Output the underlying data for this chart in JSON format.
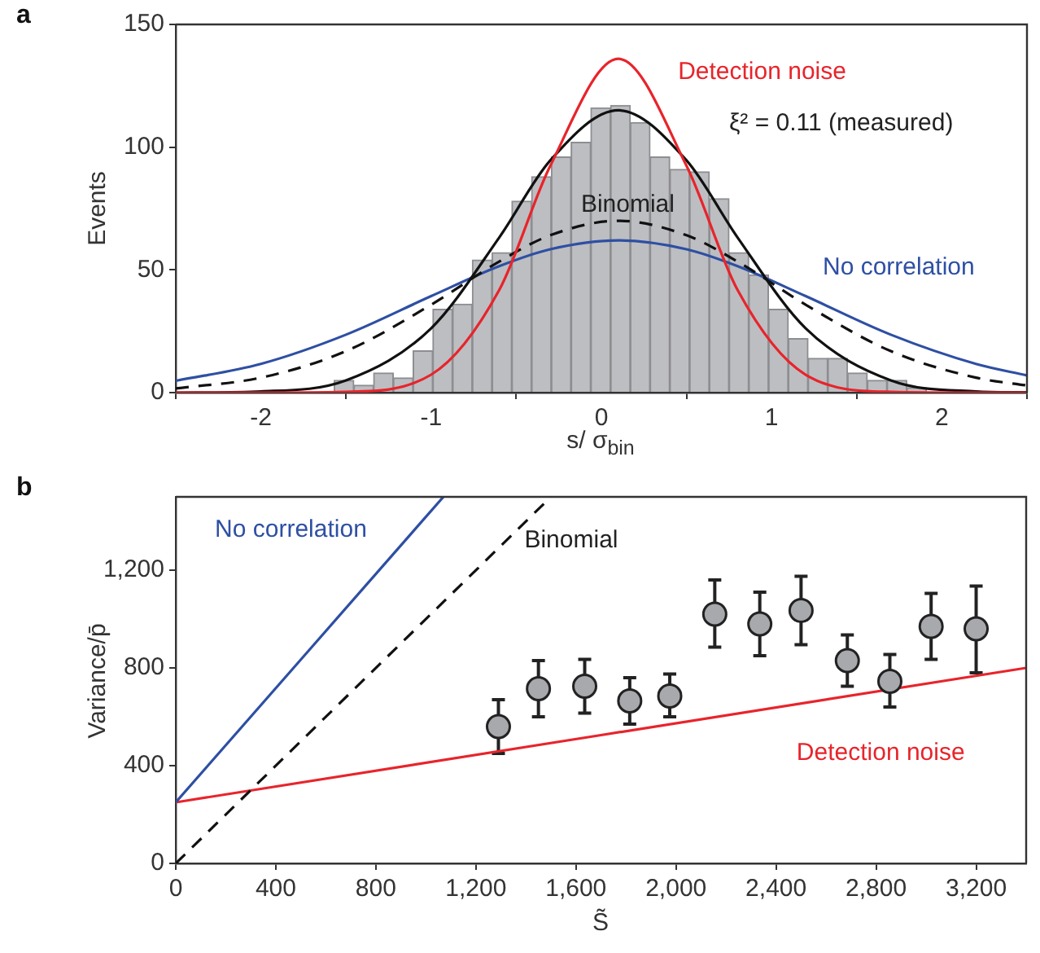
{
  "chart_data": [
    {
      "type": "histogram",
      "title": "a",
      "xlabel": "s/ σ$_{bin}$",
      "ylabel": "Events",
      "xlim": [
        -2.5,
        2.5
      ],
      "xticks": [
        -2,
        -1,
        0,
        1,
        2
      ],
      "ylim": [
        0,
        150
      ],
      "yticks": [
        0,
        50,
        100,
        150
      ],
      "grid": false,
      "legend": false,
      "series": [
        {
          "color": "#bdbec2",
          "bins": [
            -1.57,
            -1.454,
            -1.338,
            -1.222,
            -1.106,
            -0.99,
            -0.874,
            -0.758,
            -0.642,
            -0.526,
            -0.41,
            -0.294,
            -0.178,
            -0.062,
            0.054,
            0.17,
            0.286,
            0.402,
            0.518,
            0.634,
            0.75,
            0.866,
            0.982,
            1.098,
            1.214,
            1.33,
            1.446,
            1.562,
            1.678,
            1.794,
            1.91
          ],
          "values": [
            5,
            3,
            8,
            6,
            17,
            34,
            36,
            54,
            57,
            78,
            88,
            96,
            102,
            116,
            117,
            110,
            96,
            91,
            90,
            79,
            57,
            48,
            34,
            22,
            14,
            14,
            8,
            5,
            5,
            2
          ]
        },
        {
          "type": "line",
          "name": "Detection noise",
          "color": "#e8242b",
          "x": [
            -2.5,
            -2,
            -1.5,
            -1,
            -0.6,
            -0.3,
            0.1,
            0.5,
            0.8,
            1.2,
            1.7,
            2.2,
            2.5
          ],
          "values": [
            0,
            0,
            0.3,
            7.3,
            41.8,
            92.4,
            136,
            92.4,
            41.8,
            7.3,
            0.3,
            0,
            0
          ]
        },
        {
          "type": "line",
          "name": "ξ² = 0.11 (measured)",
          "color": "#111111",
          "x": [
            -2.5,
            -2,
            -1.5,
            -1,
            -0.6,
            -0.3,
            0.1,
            0.5,
            0.8,
            1.2,
            1.7,
            2.2,
            2.5
          ],
          "values": [
            0,
            0.5,
            5,
            26.2,
            63.2,
            94.6,
            115,
            94.6,
            63.2,
            26.2,
            5,
            0.5,
            0.1
          ]
        },
        {
          "type": "line",
          "name": "Binomial",
          "color": "#111111",
          "line_style": "dashed",
          "x": [
            -2.5,
            -2,
            -1.5,
            -1,
            -0.6,
            -0.3,
            0.1,
            0.5,
            0.8,
            1.2,
            1.7,
            2.2,
            2.5
          ],
          "values": [
            1.7,
            6.1,
            16.9,
            35.8,
            53.4,
            64.1,
            70,
            64.1,
            53.4,
            35.8,
            16.9,
            6.1,
            2.9
          ]
        },
        {
          "type": "line",
          "name": "No correlation",
          "color": "#2e4fa3",
          "x": [
            -2.5,
            -2,
            -1.5,
            -1,
            -0.6,
            -0.3,
            0.1,
            0.5,
            0.8,
            1.2,
            1.7,
            2.2,
            2.5
          ],
          "values": [
            4.8,
            11.7,
            23.6,
            39.3,
            51.5,
            58.4,
            62,
            58.4,
            51.5,
            39.3,
            23.6,
            11.7,
            7.0
          ]
        }
      ]
    },
    {
      "type": "scatter",
      "title": "b",
      "xlabel": "S̃",
      "ylabel": "Variance/p̄",
      "xlim": [
        0,
        3400
      ],
      "xticks": [
        0,
        400,
        800,
        {
          "value": 1200,
          "label": "1,200"
        },
        {
          "value": 1600,
          "label": "1,600"
        },
        {
          "value": 2000,
          "label": "2,000"
        },
        {
          "value": 2400,
          "label": "2,400"
        },
        {
          "value": 2800,
          "label": "2,800"
        },
        {
          "value": 3200,
          "label": "3,200"
        }
      ],
      "ylim": [
        0,
        1500
      ],
      "yticks": [
        0,
        400,
        800,
        {
          "value": 1200,
          "label": "1,200"
        }
      ],
      "grid": false,
      "legend": false,
      "series": [
        {
          "type": "line",
          "name": "No correlation",
          "color": "#2e4fa3",
          "x": [
            0,
            1070
          ],
          "values": [
            250,
            1500
          ]
        },
        {
          "type": "line",
          "name": "Binomial",
          "color": "#111111",
          "line_style": "dashed",
          "x": [
            0,
            1500
          ],
          "values": [
            0,
            1500
          ]
        },
        {
          "type": "line",
          "name": "Detection noise",
          "color": "#e8242b",
          "x": [
            0,
            3400
          ],
          "values": [
            250,
            800
          ]
        },
        {
          "marker": "circle",
          "color": "#a7a9ac",
          "x": [
            1290,
            1450,
            1635,
            1815,
            1975,
            2155,
            2335,
            2500,
            2685,
            2855,
            3020,
            3200
          ],
          "values": [
            560,
            715,
            725,
            665,
            685,
            1020,
            980,
            1035,
            830,
            745,
            970,
            960
          ],
          "errors": [
            [
              450,
              670
            ],
            [
              600,
              830
            ],
            [
              615,
              835
            ],
            [
              570,
              760
            ],
            [
              600,
              775
            ],
            [
              885,
              1160
            ],
            [
              850,
              1110
            ],
            [
              895,
              1175
            ],
            [
              725,
              935
            ],
            [
              640,
              855
            ],
            [
              835,
              1105
            ],
            [
              780,
              1135
            ]
          ]
        }
      ]
    }
  ]
}
